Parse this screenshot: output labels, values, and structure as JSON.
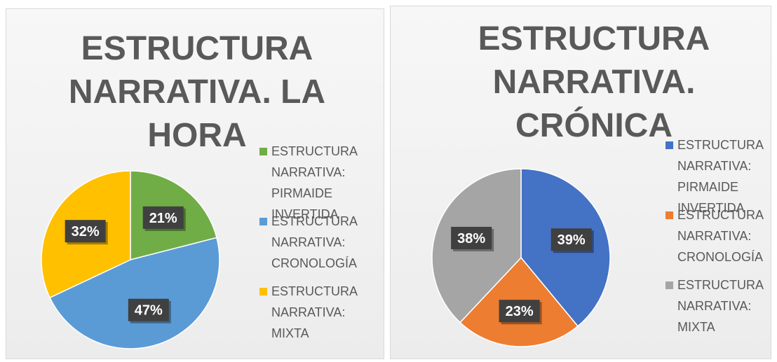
{
  "chart_data": [
    {
      "type": "pie",
      "title": "ESTRUCTURA NARRATIVA. LA HORA",
      "categories": [
        "ESTRUCTURA NARRATIVA: PIRMAIDE INVERTIDA",
        "ESTRUCTURA NARRATIVA: CRONOLOGÍA",
        "ESTRUCTURA NARRATIVA: MIXTA"
      ],
      "values": [
        21,
        47,
        32
      ],
      "value_labels": [
        "21%",
        "47%",
        "32%"
      ],
      "colors": [
        "#70ad47",
        "#5b9bd5",
        "#ffc000"
      ],
      "legend": "right"
    },
    {
      "type": "pie",
      "title": "ESTRUCTURA NARRATIVA. CRÓNICA",
      "categories": [
        "ESTRUCTURA NARRATIVA: PIRMAIDE INVERTIDA",
        "ESTRUCTURA NARRATIVA: CRONOLOGÍA",
        "ESTRUCTURA NARRATIVA: MIXTA"
      ],
      "values": [
        39,
        23,
        38
      ],
      "value_labels": [
        "39%",
        "23%",
        "38%"
      ],
      "colors": [
        "#4472c4",
        "#ed7d31",
        "#a5a5a5"
      ],
      "legend": "right"
    }
  ]
}
